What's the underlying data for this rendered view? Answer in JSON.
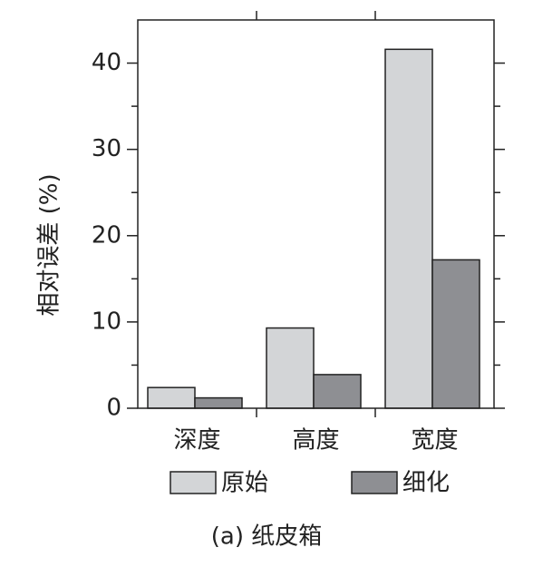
{
  "chart_data": {
    "type": "bar",
    "y_label": "相对误差 (%)",
    "caption": "(a) 纸皮箱",
    "categories": [
      "深度",
      "高度",
      "宽度"
    ],
    "series": [
      {
        "name": "原始",
        "color": "#d3d5d7",
        "values": [
          2.4,
          9.3,
          41.6
        ]
      },
      {
        "name": "细化",
        "color": "#8e8f93",
        "values": [
          1.2,
          3.9,
          17.2
        ]
      }
    ],
    "ylim": [
      0,
      45
    ],
    "yticks": [
      0,
      10,
      20,
      30,
      40
    ]
  }
}
